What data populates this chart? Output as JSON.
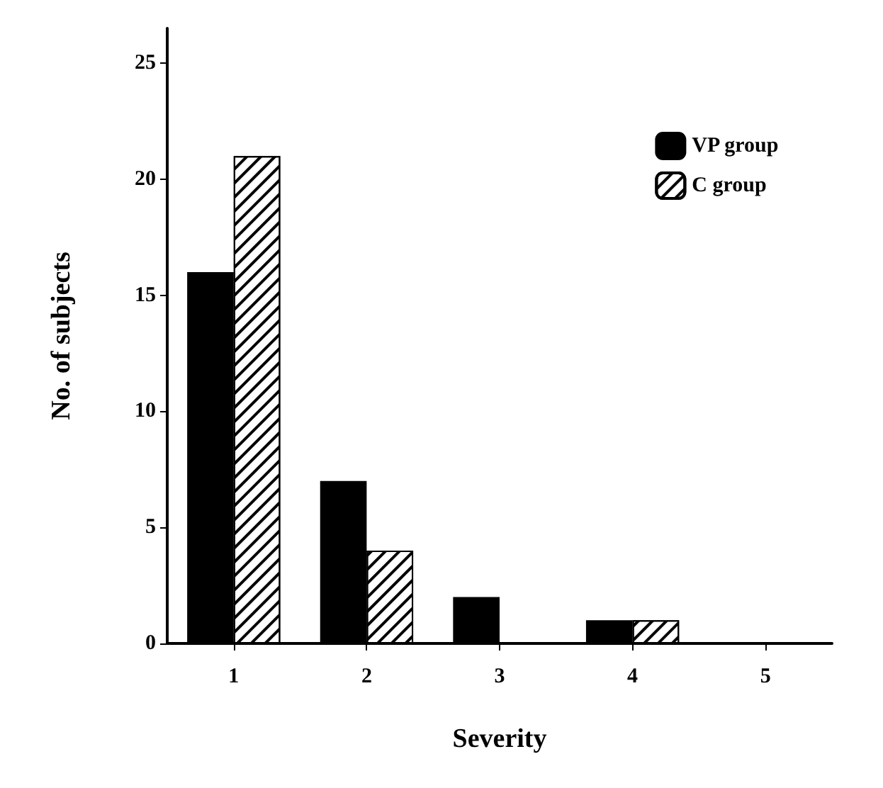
{
  "chart_data": {
    "type": "bar",
    "xlabel": "Severity",
    "ylabel": "No. of subjects",
    "categories": [
      "1",
      "2",
      "3",
      "4",
      "5"
    ],
    "series": [
      {
        "name": "VP group",
        "color": "#000000",
        "values": [
          16,
          7,
          2,
          1,
          0
        ]
      },
      {
        "name": "C group",
        "color": "#ffffff",
        "values": [
          21,
          4,
          0,
          1,
          0
        ]
      }
    ],
    "ylim": [
      0,
      26.5
    ],
    "yticks": [
      0,
      5,
      10,
      15,
      20,
      25
    ],
    "grid": false,
    "legend": "top right"
  }
}
